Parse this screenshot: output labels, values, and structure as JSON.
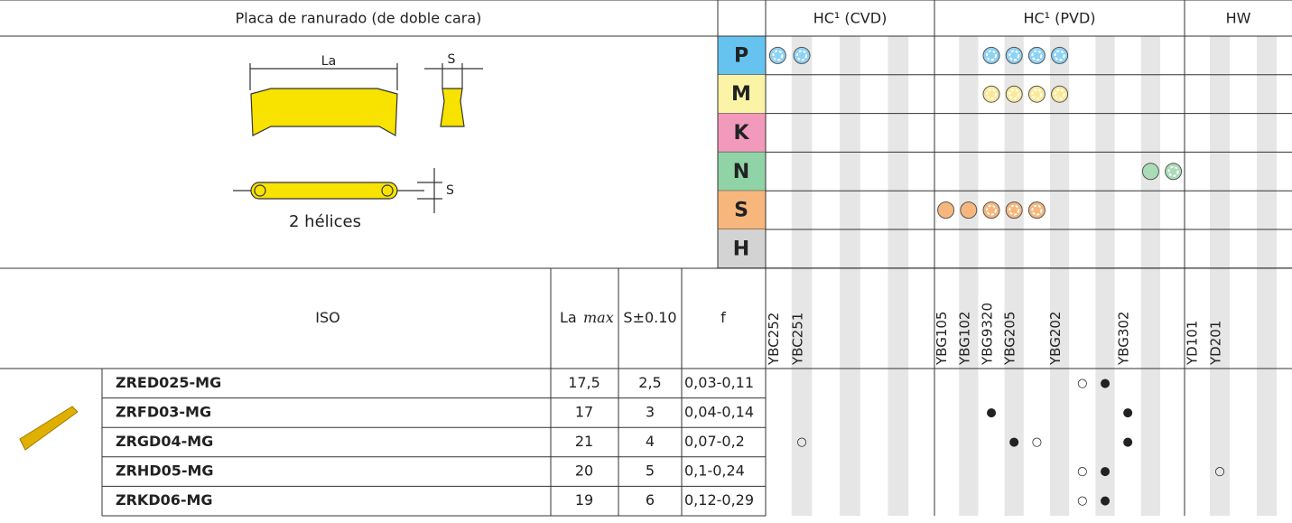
{
  "header": {
    "title": "Placa de ranurado (de doble cara)",
    "groups": [
      "HC¹ (CVD)",
      "HC¹ (PVD)",
      "HW"
    ]
  },
  "drawing": {
    "la": "La",
    "s_top": "S",
    "s_side": "S",
    "caption": "2 hélices"
  },
  "materials": [
    "P",
    "M",
    "K",
    "N",
    "S",
    "H"
  ],
  "table": {
    "headers": {
      "iso": "ISO",
      "la": "La",
      "la_max": "max",
      "s": "S±0.10",
      "f": "f"
    },
    "columns": [
      "YBC252",
      "YBC251",
      null,
      null,
      null,
      null,
      null,
      "YBG105",
      "YBG102",
      "YBG9320",
      "YBG205",
      null,
      "YBG202",
      null,
      null,
      "YBG302",
      null,
      null,
      "YD101",
      "YD201",
      null,
      null
    ],
    "rows": [
      {
        "iso": "ZRED025-MG",
        "la": "17,5",
        "s": "2,5",
        "f": "0,03-0,11",
        "marks": [
          null,
          null,
          null,
          null,
          null,
          null,
          null,
          null,
          null,
          null,
          null,
          null,
          null,
          "○",
          "●",
          null,
          null,
          null,
          null,
          null,
          null,
          null
        ]
      },
      {
        "iso": "ZRFD03-MG",
        "la": "17",
        "s": "3",
        "f": "0,04-0,14",
        "marks": [
          null,
          null,
          null,
          null,
          null,
          null,
          null,
          null,
          null,
          "●",
          null,
          null,
          null,
          null,
          null,
          "●",
          null,
          null,
          null,
          null,
          null,
          null
        ]
      },
      {
        "iso": "ZRGD04-MG",
        "la": "21",
        "s": "4",
        "f": "0,07-0,2",
        "marks": [
          null,
          "○",
          null,
          null,
          null,
          null,
          null,
          null,
          null,
          null,
          "●",
          "○",
          null,
          null,
          null,
          "●",
          null,
          null,
          null,
          null,
          null,
          null
        ]
      },
      {
        "iso": "ZRHD05-MG",
        "la": "20",
        "s": "5",
        "f": "0,1-0,24",
        "marks": [
          null,
          null,
          null,
          null,
          null,
          null,
          null,
          null,
          null,
          null,
          null,
          null,
          null,
          "○",
          "●",
          null,
          null,
          null,
          null,
          "○",
          null,
          null
        ]
      },
      {
        "iso": "ZRKD06-MG",
        "la": "19",
        "s": "6",
        "f": "0,12-0,29",
        "marks": [
          null,
          null,
          null,
          null,
          null,
          null,
          null,
          null,
          null,
          null,
          null,
          null,
          null,
          "○",
          "●",
          null,
          null,
          null,
          null,
          null,
          null,
          null
        ]
      }
    ]
  }
}
